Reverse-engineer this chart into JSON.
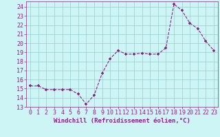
{
  "x": [
    0,
    1,
    2,
    3,
    4,
    5,
    6,
    7,
    8,
    9,
    10,
    11,
    12,
    13,
    14,
    15,
    16,
    17,
    18,
    19,
    20,
    21,
    22,
    23
  ],
  "y": [
    15.3,
    15.3,
    14.9,
    14.9,
    14.9,
    14.9,
    14.4,
    13.3,
    14.3,
    16.7,
    18.3,
    19.2,
    18.8,
    18.8,
    18.9,
    18.8,
    18.8,
    19.5,
    24.3,
    23.6,
    22.2,
    21.6,
    20.2,
    19.2
  ],
  "line_color": "#882288",
  "marker": "+",
  "marker_color": "#882288",
  "bg_color": "#cef5f5",
  "grid_color": "#99cccc",
  "xlabel": "Windchill (Refroidissement éolien,°C)",
  "xlabel_color": "#882288",
  "xtick_labels": [
    "0",
    "1",
    "2",
    "3",
    "4",
    "5",
    "6",
    "7",
    "8",
    "9",
    "10",
    "11",
    "12",
    "13",
    "14",
    "15",
    "16",
    "17",
    "18",
    "19",
    "20",
    "21",
    "22",
    "23"
  ],
  "ytick_values": [
    13,
    14,
    15,
    16,
    17,
    18,
    19,
    20,
    21,
    22,
    23,
    24
  ],
  "ylim": [
    13,
    24.6
  ],
  "xlim": [
    -0.5,
    23.5
  ],
  "tick_color": "#882288",
  "font_size_xlabel": 6.5,
  "font_size_ticks": 6.0
}
